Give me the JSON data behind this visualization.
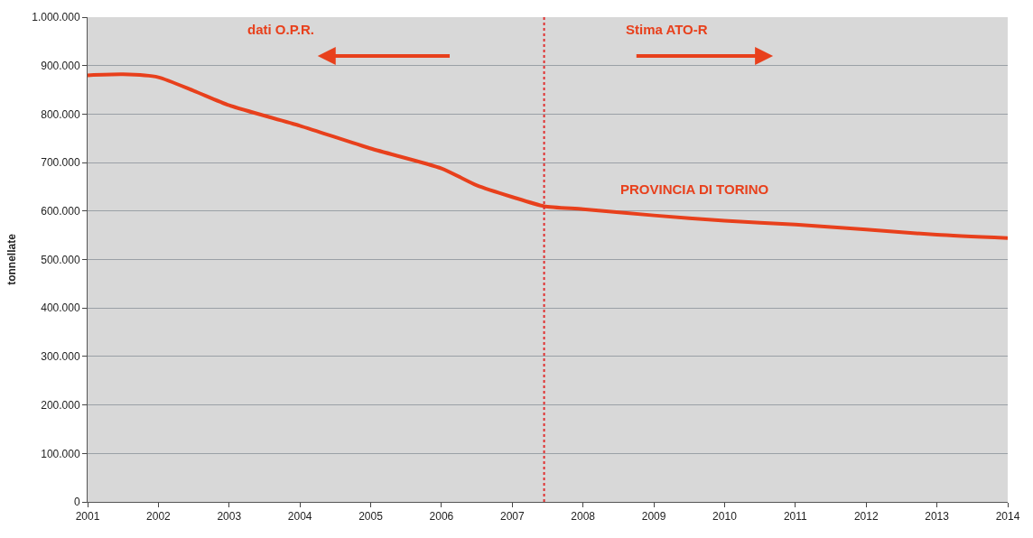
{
  "chart_data": {
    "type": "line",
    "ylabel": "tonnellate",
    "x": [
      2001,
      2001.5,
      2002,
      2002.5,
      2003,
      2004,
      2005,
      2006,
      2006.5,
      2007,
      2007.45,
      2008,
      2009,
      2010,
      2011,
      2012,
      2013,
      2014
    ],
    "series": [
      {
        "color": "#e8401c",
        "values": [
          880000,
          882000,
          876000,
          848000,
          818000,
          776000,
          729000,
          688000,
          653000,
          629000,
          610000,
          604000,
          591000,
          580000,
          572000,
          562000,
          551000,
          544000
        ]
      }
    ],
    "xlim": [
      2001,
      2014
    ],
    "xticks": [
      2001,
      2002,
      2003,
      2004,
      2005,
      2006,
      2007,
      2008,
      2009,
      2010,
      2011,
      2012,
      2013,
      2014
    ],
    "ylim": [
      0,
      1000000
    ],
    "yticks": [
      {
        "value": 0,
        "label": "0"
      },
      {
        "value": 100000,
        "label": "100.000"
      },
      {
        "value": 200000,
        "label": "200.000"
      },
      {
        "value": 300000,
        "label": "300.000"
      },
      {
        "value": 400000,
        "label": "400.000"
      },
      {
        "value": 500000,
        "label": "500.000"
      },
      {
        "value": 600000,
        "label": "600.000"
      },
      {
        "value": 700000,
        "label": "700.000"
      },
      {
        "value": 800000,
        "label": "800.000"
      },
      {
        "value": 900000,
        "label": "900.000"
      },
      {
        "value": 1000000,
        "label": "1.000.000"
      }
    ],
    "ref_lines": [
      {
        "axis": "x",
        "value": 2007.45,
        "color": "#e03030",
        "line_style": "dotted"
      }
    ],
    "annotations": [
      "dati O.P.R.",
      "Stima ATO-R",
      "PROVINCIA DI TORINO"
    ],
    "grid": "y",
    "marker": "none",
    "line_style": "solid"
  }
}
